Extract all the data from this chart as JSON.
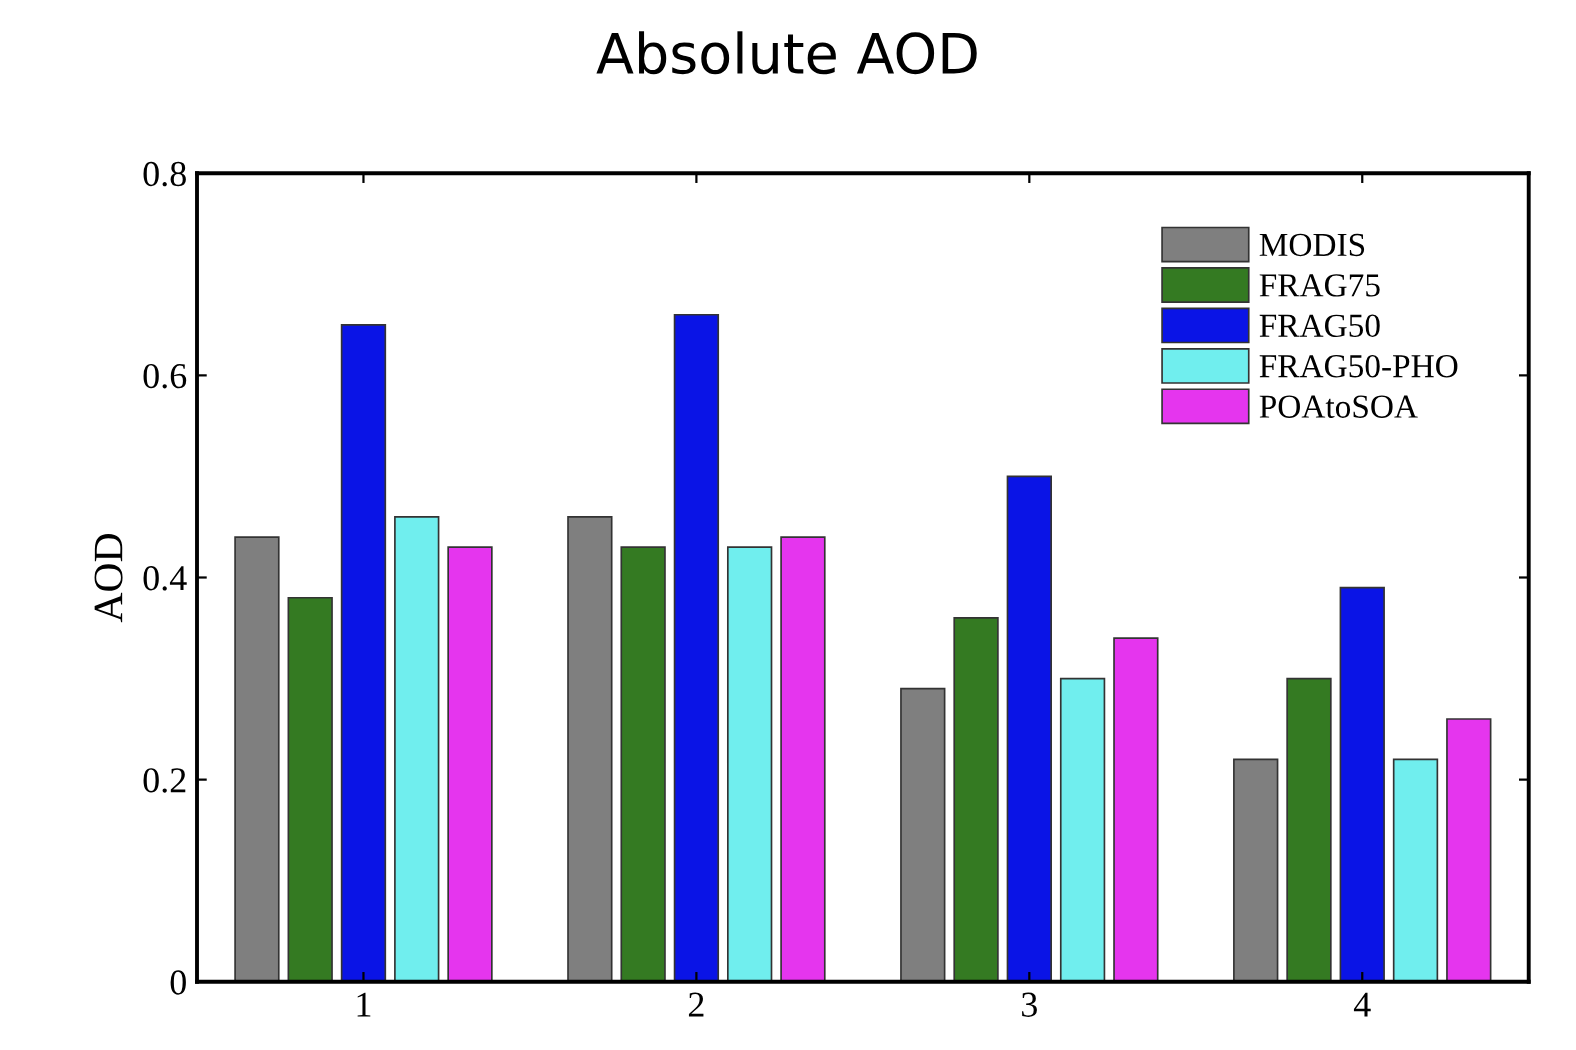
{
  "chart_data": {
    "type": "bar",
    "title": "Absolute AOD",
    "ylabel": "AOD",
    "categories": [
      "1",
      "2",
      "3",
      "4"
    ],
    "series": [
      {
        "name": "MODIS",
        "color": "#7f7f7f",
        "values": [
          0.44,
          0.46,
          0.29,
          0.22
        ]
      },
      {
        "name": "FRAG75",
        "color": "#347a22",
        "values": [
          0.38,
          0.43,
          0.36,
          0.3
        ]
      },
      {
        "name": "FRAG50",
        "color": "#0a14e6",
        "values": [
          0.65,
          0.66,
          0.5,
          0.39
        ]
      },
      {
        "name": "FRAG50-PHO",
        "color": "#70eeee",
        "values": [
          0.46,
          0.43,
          0.3,
          0.22
        ]
      },
      {
        "name": "POAtoSOA",
        "color": "#e535ee",
        "values": [
          0.43,
          0.44,
          0.34,
          0.26
        ]
      }
    ],
    "ylim": [
      0,
      0.8
    ],
    "yticks": [
      0,
      0.2,
      0.4,
      0.6,
      0.8
    ],
    "grid": false,
    "legend": "top right"
  }
}
